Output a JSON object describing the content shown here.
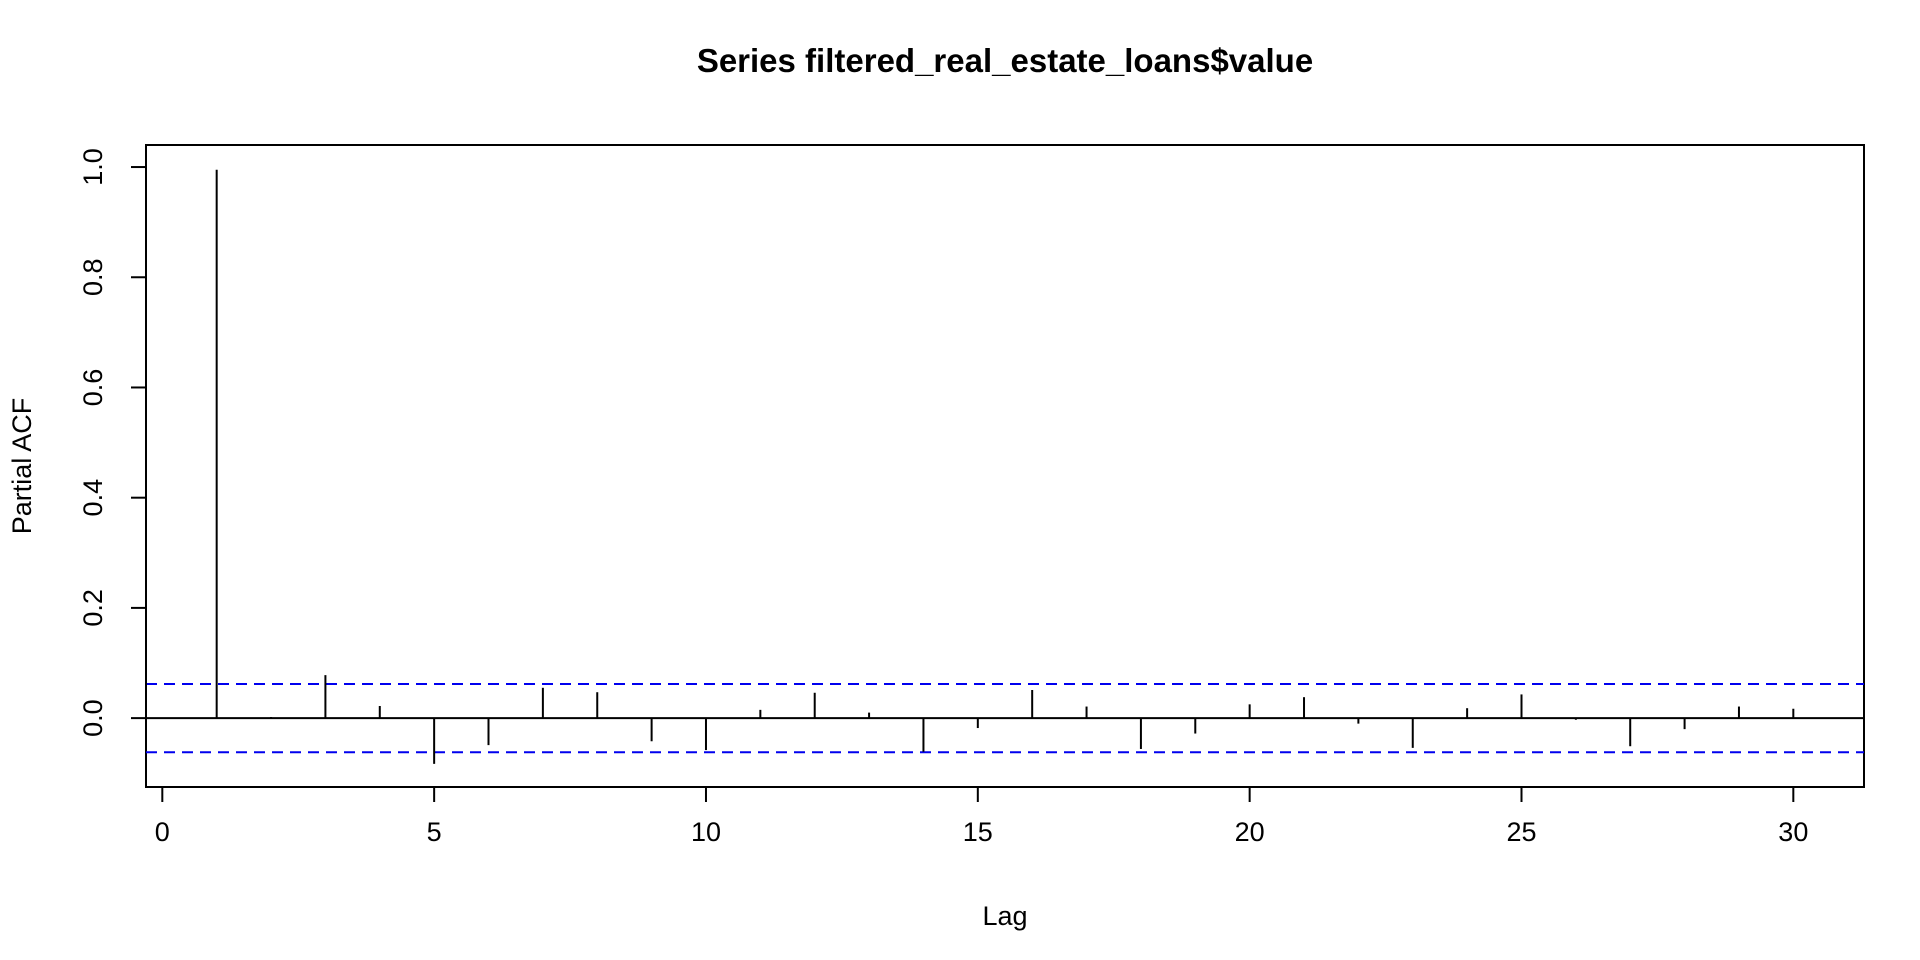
{
  "chart_data": {
    "type": "bar",
    "title": "Series  filtered_real_estate_loans$value",
    "xlabel": "Lag",
    "ylabel": "Partial ACF",
    "xlim": [
      -0.3,
      31.3
    ],
    "ylim": [
      -0.125,
      1.04
    ],
    "xticks": [
      0,
      5,
      10,
      15,
      20,
      25,
      30
    ],
    "yticks": [
      0.0,
      0.2,
      0.4,
      0.6,
      0.8,
      1.0
    ],
    "ytick_labels": [
      "0.0",
      "0.2",
      "0.4",
      "0.6",
      "0.8",
      "1.0"
    ],
    "confidence_bound": 0.062,
    "bar_color": "#000000",
    "bound_color": "#0000ee",
    "grid": false,
    "series": [
      {
        "lag": [
          1,
          2,
          3,
          4,
          5,
          6,
          7,
          8,
          9,
          10,
          11,
          12,
          13,
          14,
          15,
          16,
          17,
          18,
          19,
          20,
          21,
          22,
          23,
          24,
          25,
          26,
          27,
          28,
          29,
          30
        ],
        "values": [
          0.995,
          0.002,
          0.078,
          0.022,
          -0.083,
          -0.049,
          0.055,
          0.047,
          -0.042,
          -0.058,
          0.015,
          0.046,
          0.01,
          -0.061,
          -0.018,
          0.051,
          0.021,
          -0.056,
          -0.028,
          0.025,
          0.038,
          -0.01,
          -0.054,
          0.018,
          0.043,
          -0.003,
          -0.051,
          -0.02,
          0.021,
          0.017
        ]
      }
    ]
  }
}
